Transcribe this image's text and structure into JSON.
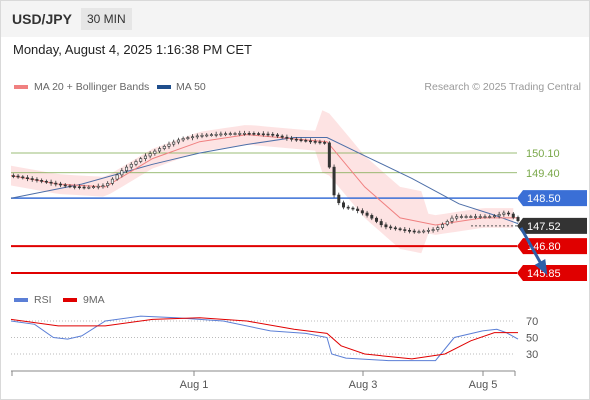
{
  "header": {
    "symbol": "USD/JPY",
    "timeframe": "30 MIN"
  },
  "datetime": "Monday, August 4, 2025 1:16:38 PM CET",
  "legend": {
    "ma20": {
      "label": "MA 20 + Bollinger Bands",
      "color": "#f08080"
    },
    "ma50": {
      "label": "MA 50",
      "color": "#1f4e8c"
    },
    "credit": "Research © 2025 Trading Central"
  },
  "rsi_legend": {
    "rsi": {
      "label": "RSI",
      "color": "#5b7fd6"
    },
    "ma9": {
      "label": "9MA",
      "color": "#e00000"
    }
  },
  "colors": {
    "resistance": "#7aa84a",
    "pivot": "#3a6fd6",
    "support": "#e00000",
    "current": "#333333",
    "arrow": "#2e5fa8"
  },
  "chart_data": [
    {
      "type": "candlestick",
      "x_ticks": [
        "Aug 1",
        "Aug 3",
        "Aug 5"
      ],
      "levels": [
        {
          "value": 150.1,
          "label": "150.10",
          "kind": "resistance"
        },
        {
          "value": 149.4,
          "label": "149.40",
          "kind": "resistance"
        },
        {
          "value": 148.5,
          "label": "148.50",
          "kind": "pivot"
        },
        {
          "value": 146.8,
          "label": "146.80",
          "kind": "support"
        },
        {
          "value": 145.85,
          "label": "145.85",
          "kind": "support"
        }
      ],
      "current_price": {
        "value": 147.52,
        "label": "147.52"
      },
      "close_path": [
        [
          0,
          149.3
        ],
        [
          8,
          149.18
        ],
        [
          16,
          149.05
        ],
        [
          24,
          148.92
        ],
        [
          32,
          148.88
        ],
        [
          40,
          148.95
        ],
        [
          48,
          149.55
        ],
        [
          56,
          149.95
        ],
        [
          64,
          150.3
        ],
        [
          72,
          150.6
        ],
        [
          80,
          150.72
        ],
        [
          90,
          150.78
        ],
        [
          100,
          150.8
        ],
        [
          110,
          150.76
        ],
        [
          118,
          150.6
        ],
        [
          126,
          150.52
        ],
        [
          134,
          150.45
        ],
        [
          136,
          148.75
        ],
        [
          140,
          148.2
        ],
        [
          146,
          148.1
        ],
        [
          152,
          147.85
        ],
        [
          158,
          147.5
        ],
        [
          164,
          147.4
        ],
        [
          172,
          147.3
        ],
        [
          180,
          147.4
        ],
        [
          188,
          147.85
        ],
        [
          196,
          147.85
        ],
        [
          204,
          147.85
        ],
        [
          210,
          148.0
        ],
        [
          215,
          147.7
        ]
      ],
      "ma20": [
        [
          0,
          149.3
        ],
        [
          20,
          149.0
        ],
        [
          40,
          148.9
        ],
        [
          60,
          149.9
        ],
        [
          80,
          150.5
        ],
        [
          100,
          150.75
        ],
        [
          120,
          150.6
        ],
        [
          134,
          150.5
        ],
        [
          150,
          148.9
        ],
        [
          165,
          147.8
        ],
        [
          180,
          147.55
        ],
        [
          200,
          147.8
        ],
        [
          215,
          147.8
        ]
      ],
      "ma50": [
        [
          0,
          148.5
        ],
        [
          30,
          149.0
        ],
        [
          60,
          149.7
        ],
        [
          80,
          150.1
        ],
        [
          100,
          150.4
        ],
        [
          120,
          150.65
        ],
        [
          134,
          150.65
        ],
        [
          150,
          150.0
        ],
        [
          170,
          149.2
        ],
        [
          190,
          148.3
        ],
        [
          205,
          147.9
        ],
        [
          215,
          147.6
        ]
      ],
      "forecast": {
        "from": [
          215,
          147.45
        ],
        "to": [
          230,
          145.9
        ]
      }
    },
    {
      "type": "line",
      "title": "RSI",
      "y_ticks": [
        70,
        50,
        30
      ],
      "rsi": [
        [
          0,
          70
        ],
        [
          10,
          66
        ],
        [
          18,
          50
        ],
        [
          24,
          48
        ],
        [
          30,
          52
        ],
        [
          40,
          70
        ],
        [
          55,
          76
        ],
        [
          70,
          74
        ],
        [
          90,
          70
        ],
        [
          110,
          58
        ],
        [
          125,
          55
        ],
        [
          134,
          50
        ],
        [
          136,
          30
        ],
        [
          142,
          25
        ],
        [
          160,
          22
        ],
        [
          180,
          22
        ],
        [
          188,
          50
        ],
        [
          200,
          58
        ],
        [
          206,
          60
        ],
        [
          210,
          56
        ],
        [
          215,
          48
        ]
      ],
      "ma9": [
        [
          0,
          72
        ],
        [
          20,
          64
        ],
        [
          40,
          64
        ],
        [
          60,
          72
        ],
        [
          80,
          74
        ],
        [
          100,
          70
        ],
        [
          120,
          60
        ],
        [
          134,
          55
        ],
        [
          140,
          40
        ],
        [
          150,
          30
        ],
        [
          170,
          24
        ],
        [
          184,
          30
        ],
        [
          195,
          46
        ],
        [
          205,
          56
        ],
        [
          215,
          56
        ]
      ]
    }
  ]
}
